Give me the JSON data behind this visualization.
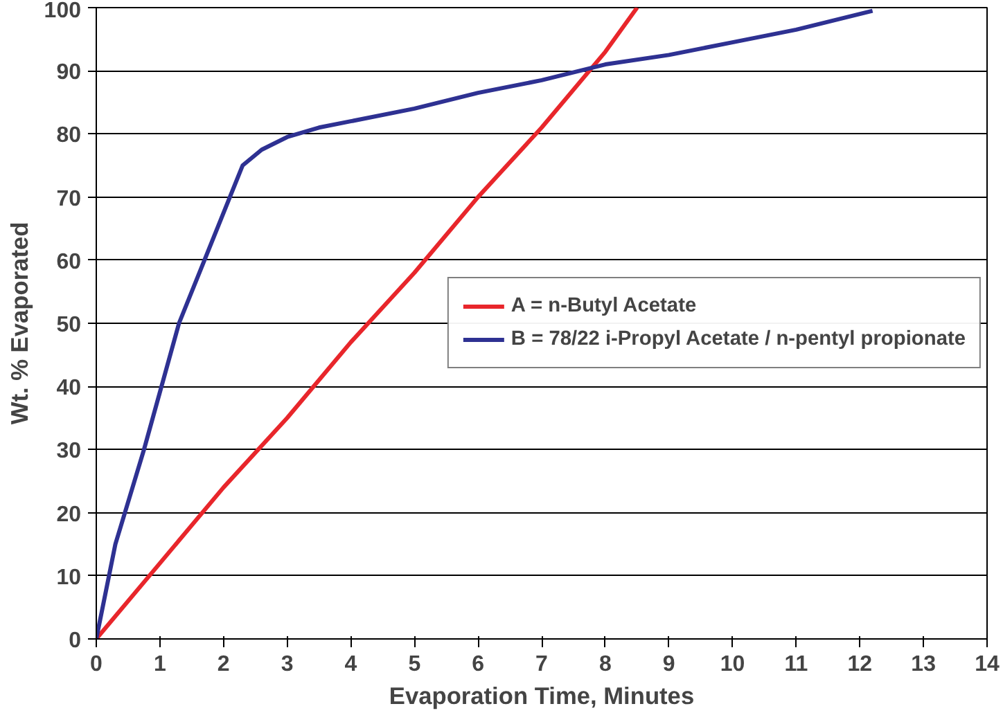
{
  "chart_data": {
    "type": "line",
    "xlabel": "Evaporation Time, Minutes",
    "ylabel": "Wt. % Evaporated",
    "series": [
      {
        "name": "A = n-Butyl Acetate",
        "color": "#e8262b",
        "x": [
          0,
          1,
          2,
          3,
          4,
          5,
          6,
          7,
          8,
          8.5
        ],
        "values": [
          0,
          12,
          24,
          35,
          47,
          58,
          70,
          81,
          93,
          100
        ]
      },
      {
        "name": "B = 78/22 i-Propyl Acetate / n-pentyl propionate",
        "color": "#2e3192",
        "x": [
          0,
          0.3,
          0.75,
          1.3,
          1.7,
          2.1,
          2.3,
          2.6,
          3,
          3.5,
          4,
          5,
          6,
          7,
          8,
          9,
          10,
          11,
          12.2
        ],
        "values": [
          0,
          15,
          30,
          50,
          60,
          70,
          75,
          77.5,
          79.5,
          81,
          82,
          84,
          86.5,
          88.5,
          91,
          92.5,
          94.5,
          96.5,
          99.5
        ]
      }
    ],
    "xlim": [
      0,
      14
    ],
    "xticks": [
      0,
      1,
      2,
      3,
      4,
      5,
      6,
      7,
      8,
      9,
      10,
      11,
      12,
      13,
      14
    ],
    "ylim": [
      0,
      100
    ],
    "yticks": [
      0,
      10,
      20,
      30,
      40,
      50,
      60,
      70,
      80,
      90,
      100
    ],
    "grid": "y",
    "legend": "right",
    "marker": "none",
    "line_style": "solid"
  }
}
